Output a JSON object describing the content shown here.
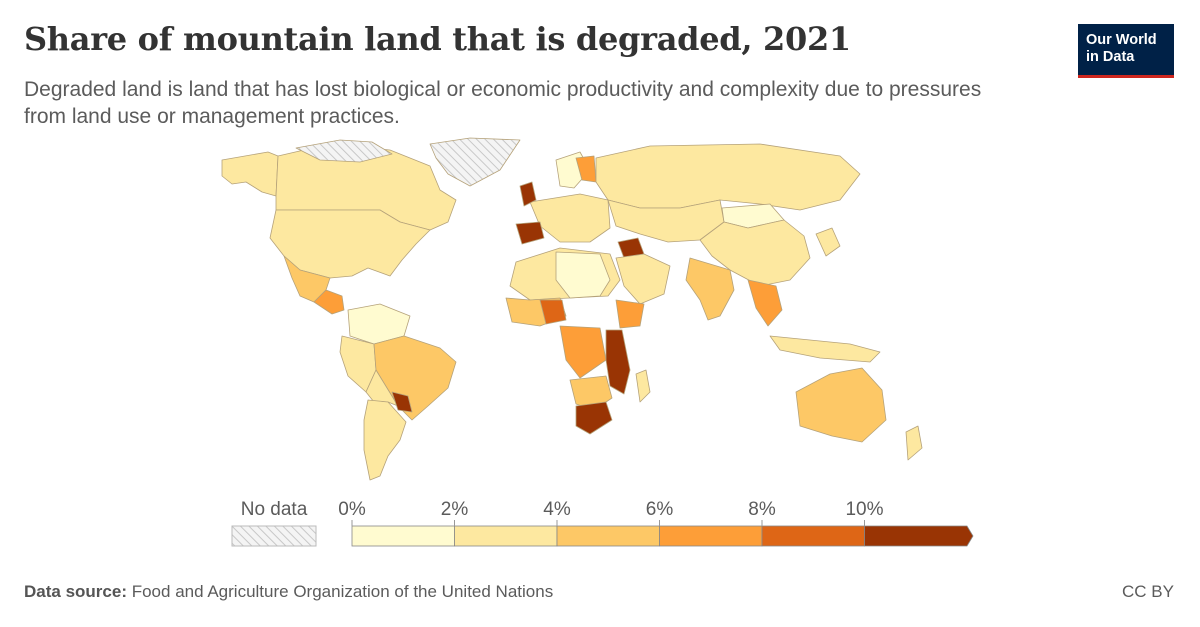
{
  "header": {
    "title": "Share of mountain land that is degraded, 2021",
    "subtitle": "Degraded land is land that has lost biological or economic productivity and complexity due to pressures from land use or management practices.",
    "logo_line1": "Our World",
    "logo_line2": "in Data"
  },
  "legend": {
    "no_data_label": "No data",
    "ticks": [
      "0%",
      "2%",
      "4%",
      "6%",
      "8%",
      "10%"
    ],
    "bin_colors": [
      "#fffbd0",
      "#fde8a0",
      "#fdc866",
      "#fd9e38",
      "#de6616",
      "#993404"
    ],
    "no_data_color": "hatched-grey"
  },
  "footer": {
    "source_label": "Data source:",
    "source_text": "Food and Agriculture Organization of the United Nations",
    "license": "CC BY"
  },
  "colors": {
    "title": "#333333",
    "logo_bg": "#002147",
    "logo_accent": "#ce261e",
    "country_border": "#b5a27a"
  }
}
